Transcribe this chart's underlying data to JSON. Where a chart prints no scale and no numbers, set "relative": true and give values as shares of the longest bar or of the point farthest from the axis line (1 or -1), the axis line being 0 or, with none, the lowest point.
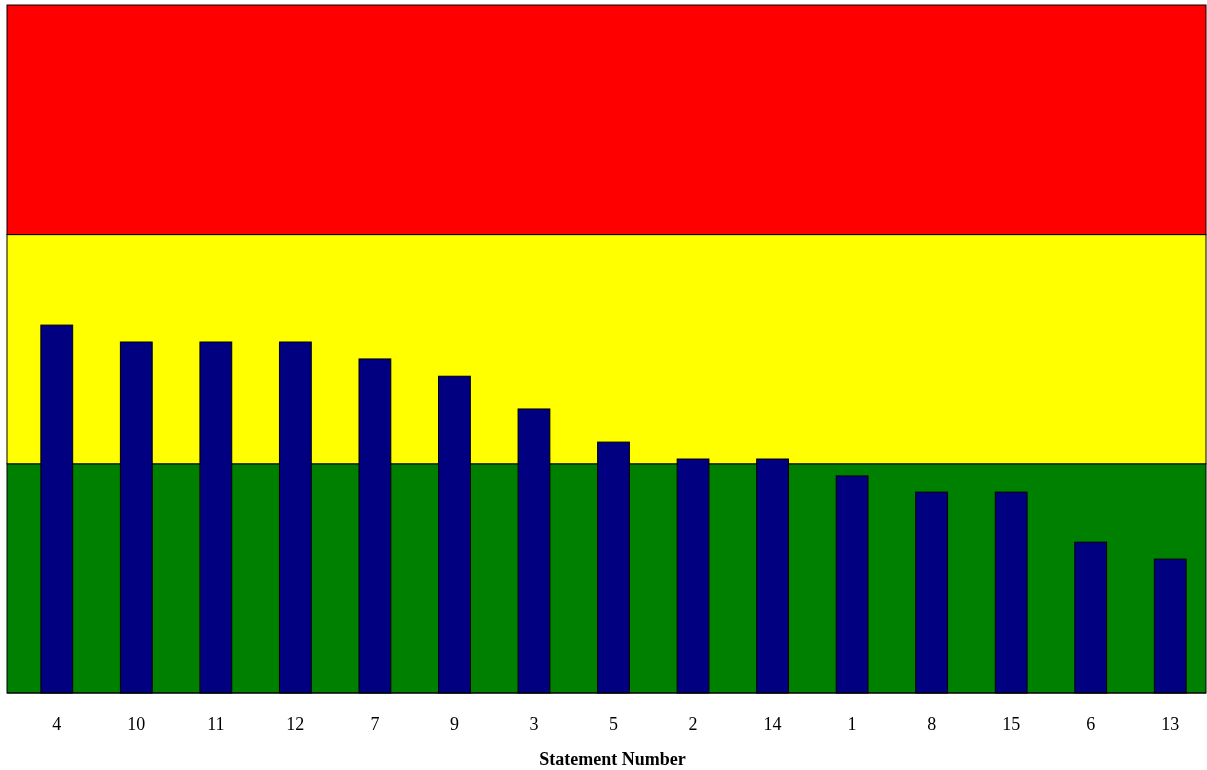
{
  "chart_data": {
    "type": "bar",
    "relative": true,
    "xlabel": "Statement Number",
    "categories": [
      "4",
      "10",
      "11",
      "12",
      "7",
      "9",
      "3",
      "5",
      "2",
      "14",
      "1",
      "8",
      "15",
      "6",
      "13"
    ],
    "values": [
      1,
      0.954,
      0.954,
      0.954,
      0.908,
      0.861,
      0.772,
      0.682,
      0.636,
      0.636,
      0.59,
      0.546,
      0.546,
      0.41,
      0.364
    ],
    "color": "#000080",
    "bands": [
      {
        "axis": "y",
        "from": 0,
        "to": 0.623,
        "color": "#008000"
      },
      {
        "axis": "y",
        "from": 0.623,
        "to": 1.246,
        "color": "#ffff00"
      },
      {
        "axis": "y",
        "from": 1.246,
        "to": 1.87,
        "color": "#ff0000"
      }
    ]
  }
}
